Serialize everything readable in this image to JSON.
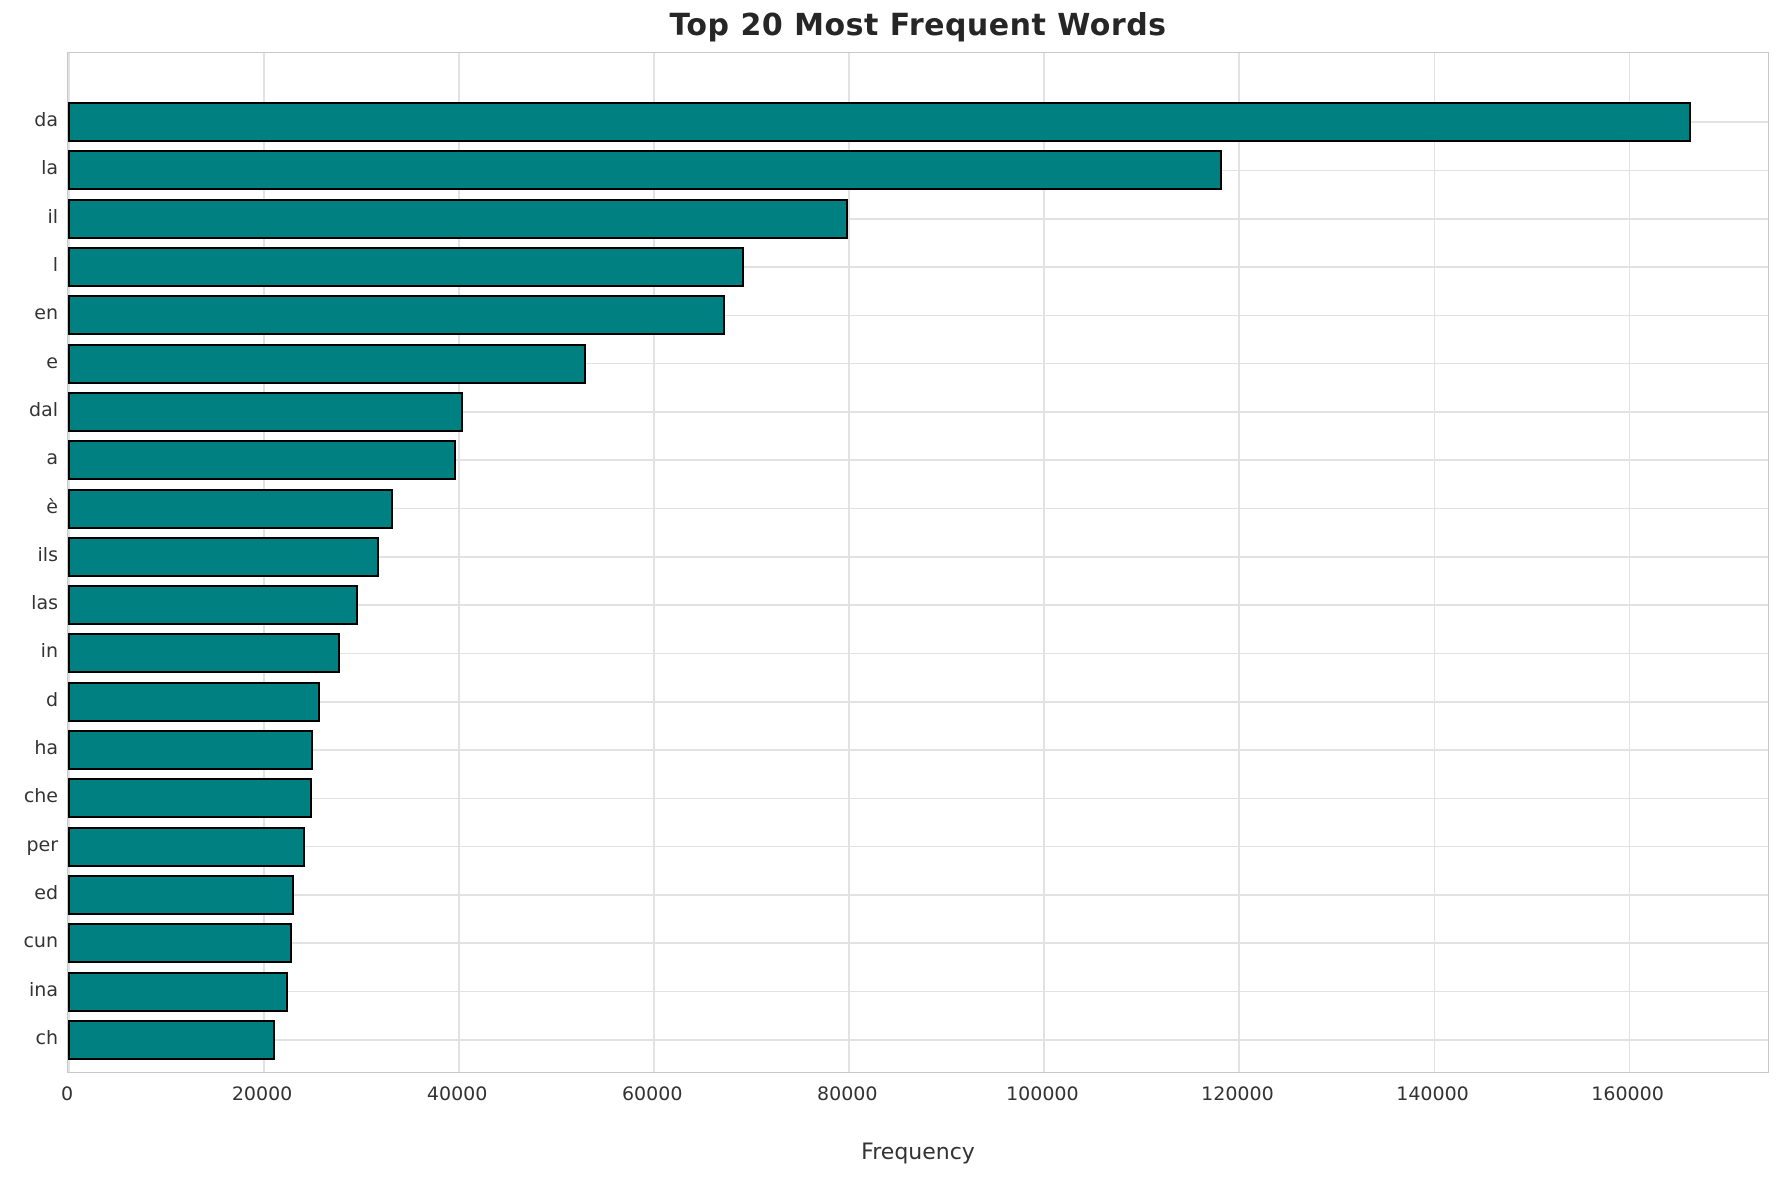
{
  "title": "Top 20 Most Frequent Words",
  "chart_data": {
    "type": "bar",
    "orientation": "horizontal",
    "title": "Top 20 Most Frequent Words",
    "xlabel": "Frequency",
    "ylabel": "",
    "categories": [
      "da",
      "la",
      "il",
      "l",
      "en",
      "e",
      "dal",
      "a",
      "è",
      "ils",
      "las",
      "in",
      "d",
      "ha",
      "che",
      "per",
      "ed",
      "cun",
      "ina",
      "ch"
    ],
    "values": [
      166400,
      118300,
      80000,
      69300,
      67400,
      53100,
      40500,
      39800,
      33300,
      31900,
      29700,
      27900,
      25800,
      25100,
      25000,
      24300,
      23200,
      23000,
      22600,
      21200
    ],
    "x_ticks": [
      0,
      20000,
      40000,
      60000,
      80000,
      100000,
      120000,
      140000,
      160000
    ],
    "xlim": [
      0,
      174500
    ],
    "grid": true,
    "legend_position": "none",
    "bar_color": "#008080",
    "bar_edge_color": "#000000",
    "grid_color": "#e2e2e2",
    "spine_color": "#c9c9c9",
    "tick_text_color": "#333333",
    "title_color": "#262626"
  }
}
